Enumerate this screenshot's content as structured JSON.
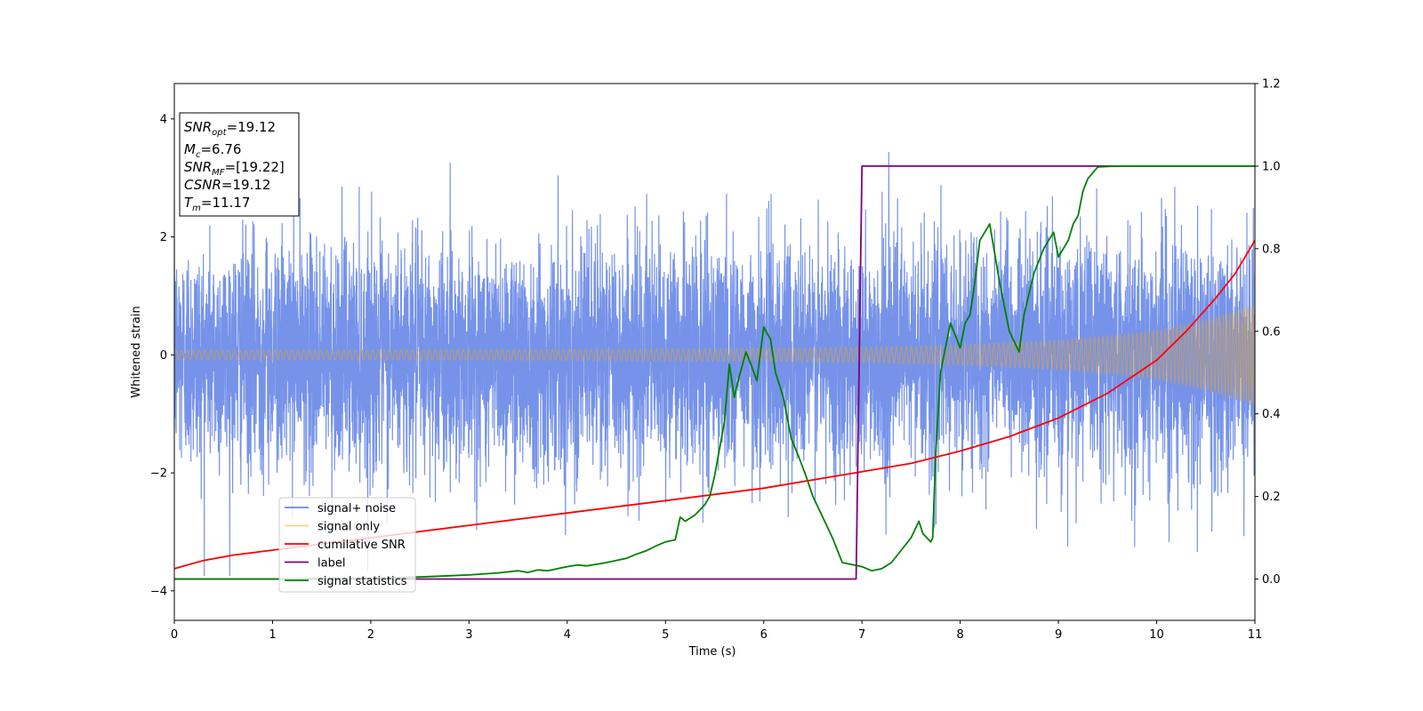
{
  "chart_data": {
    "type": "line",
    "title": "",
    "xlabel": "Time (s)",
    "ylabel": "Whitened strain",
    "xlim": [
      0,
      11
    ],
    "ylim": [
      -4.5,
      4.6
    ],
    "y2lim": [
      -0.1,
      1.2
    ],
    "x_ticks": [
      "0",
      "1",
      "2",
      "3",
      "4",
      "5",
      "6",
      "7",
      "8",
      "9",
      "10",
      "11"
    ],
    "y_ticks": [
      "−4",
      "−2",
      "0",
      "2",
      "4"
    ],
    "y2_ticks": [
      "0.0",
      "0.2",
      "0.4",
      "0.6",
      "0.8",
      "1.0",
      "1.2"
    ],
    "grid": false,
    "legend_position": "lower-left",
    "info_box": {
      "snr_opt": {
        "name": "SNR",
        "sub": "opt",
        "value": "=19.12"
      },
      "mc": {
        "name": "M",
        "sub": "c",
        "value": "=6.76"
      },
      "snr_mf": {
        "name": "SNR",
        "sub": "MF",
        "value": "=[19.22]"
      },
      "csnr": {
        "name": "CSNR",
        "value": "=19.12"
      },
      "tm": {
        "name": "T",
        "sub": "m",
        "value": "=11.17"
      }
    },
    "series": [
      {
        "name": "signal+ noise",
        "color": "#4169E1",
        "axis": "left",
        "kind": "noise",
        "sigma": 0.95,
        "max_abs": 3.75
      },
      {
        "name": "signal only",
        "color": "#FFA500",
        "axis": "left",
        "kind": "chirp",
        "envelope": [
          [
            0,
            0.08
          ],
          [
            2,
            0.085
          ],
          [
            4,
            0.095
          ],
          [
            6,
            0.11
          ],
          [
            7,
            0.13
          ],
          [
            8,
            0.17
          ],
          [
            9,
            0.25
          ],
          [
            9.5,
            0.32
          ],
          [
            10,
            0.42
          ],
          [
            10.5,
            0.6
          ],
          [
            11,
            0.85
          ]
        ]
      },
      {
        "name": "cumilative SNR",
        "color": "#FF0000",
        "axis": "right",
        "x": [
          0,
          0.1,
          0.3,
          0.6,
          1,
          2,
          3,
          4,
          5,
          6,
          7,
          7.5,
          8,
          8.5,
          9,
          9.5,
          10,
          10.3,
          10.6,
          10.8,
          11
        ],
        "values": [
          0.025,
          0.032,
          0.045,
          0.058,
          0.07,
          0.1,
          0.13,
          0.16,
          0.19,
          0.22,
          0.26,
          0.28,
          0.31,
          0.345,
          0.39,
          0.45,
          0.53,
          0.6,
          0.68,
          0.74,
          0.82
        ]
      },
      {
        "name": "label",
        "color": "#800080",
        "axis": "right",
        "x": [
          0,
          6.94,
          7.0,
          11
        ],
        "values": [
          0,
          0,
          1,
          1
        ]
      },
      {
        "name": "signal statistics",
        "color": "#008000",
        "axis": "right",
        "x": [
          0,
          1,
          2,
          2.5,
          3,
          3.3,
          3.5,
          3.6,
          3.7,
          3.8,
          3.9,
          4.0,
          4.1,
          4.2,
          4.4,
          4.5,
          4.6,
          4.7,
          4.8,
          4.9,
          5.0,
          5.1,
          5.15,
          5.2,
          5.3,
          5.4,
          5.45,
          5.5,
          5.6,
          5.65,
          5.7,
          5.75,
          5.82,
          5.87,
          5.93,
          6.0,
          6.07,
          6.12,
          6.2,
          6.28,
          6.35,
          6.43,
          6.5,
          6.6,
          6.7,
          6.8,
          7.0,
          7.1,
          7.2,
          7.3,
          7.4,
          7.5,
          7.58,
          7.62,
          7.7,
          7.72,
          7.75,
          7.8,
          7.9,
          8.0,
          8.05,
          8.1,
          8.15,
          8.2,
          8.3,
          8.35,
          8.4,
          8.5,
          8.6,
          8.65,
          8.75,
          8.85,
          8.95,
          9.0,
          9.1,
          9.15,
          9.2,
          9.25,
          9.3,
          9.4,
          9.6,
          10,
          10.5,
          11
        ],
        "values": [
          0,
          0,
          0.002,
          0.005,
          0.01,
          0.015,
          0.02,
          0.016,
          0.022,
          0.02,
          0.025,
          0.03,
          0.034,
          0.032,
          0.04,
          0.045,
          0.05,
          0.06,
          0.068,
          0.08,
          0.09,
          0.095,
          0.15,
          0.14,
          0.155,
          0.18,
          0.2,
          0.25,
          0.38,
          0.52,
          0.44,
          0.49,
          0.55,
          0.52,
          0.48,
          0.61,
          0.58,
          0.5,
          0.44,
          0.34,
          0.3,
          0.25,
          0.2,
          0.15,
          0.1,
          0.04,
          0.03,
          0.02,
          0.025,
          0.04,
          0.07,
          0.1,
          0.14,
          0.11,
          0.09,
          0.1,
          0.3,
          0.5,
          0.62,
          0.56,
          0.62,
          0.64,
          0.72,
          0.82,
          0.86,
          0.79,
          0.72,
          0.6,
          0.55,
          0.64,
          0.74,
          0.8,
          0.84,
          0.78,
          0.82,
          0.86,
          0.88,
          0.94,
          0.97,
          0.998,
          1.0,
          1.0,
          1.0,
          1.0
        ]
      }
    ]
  }
}
